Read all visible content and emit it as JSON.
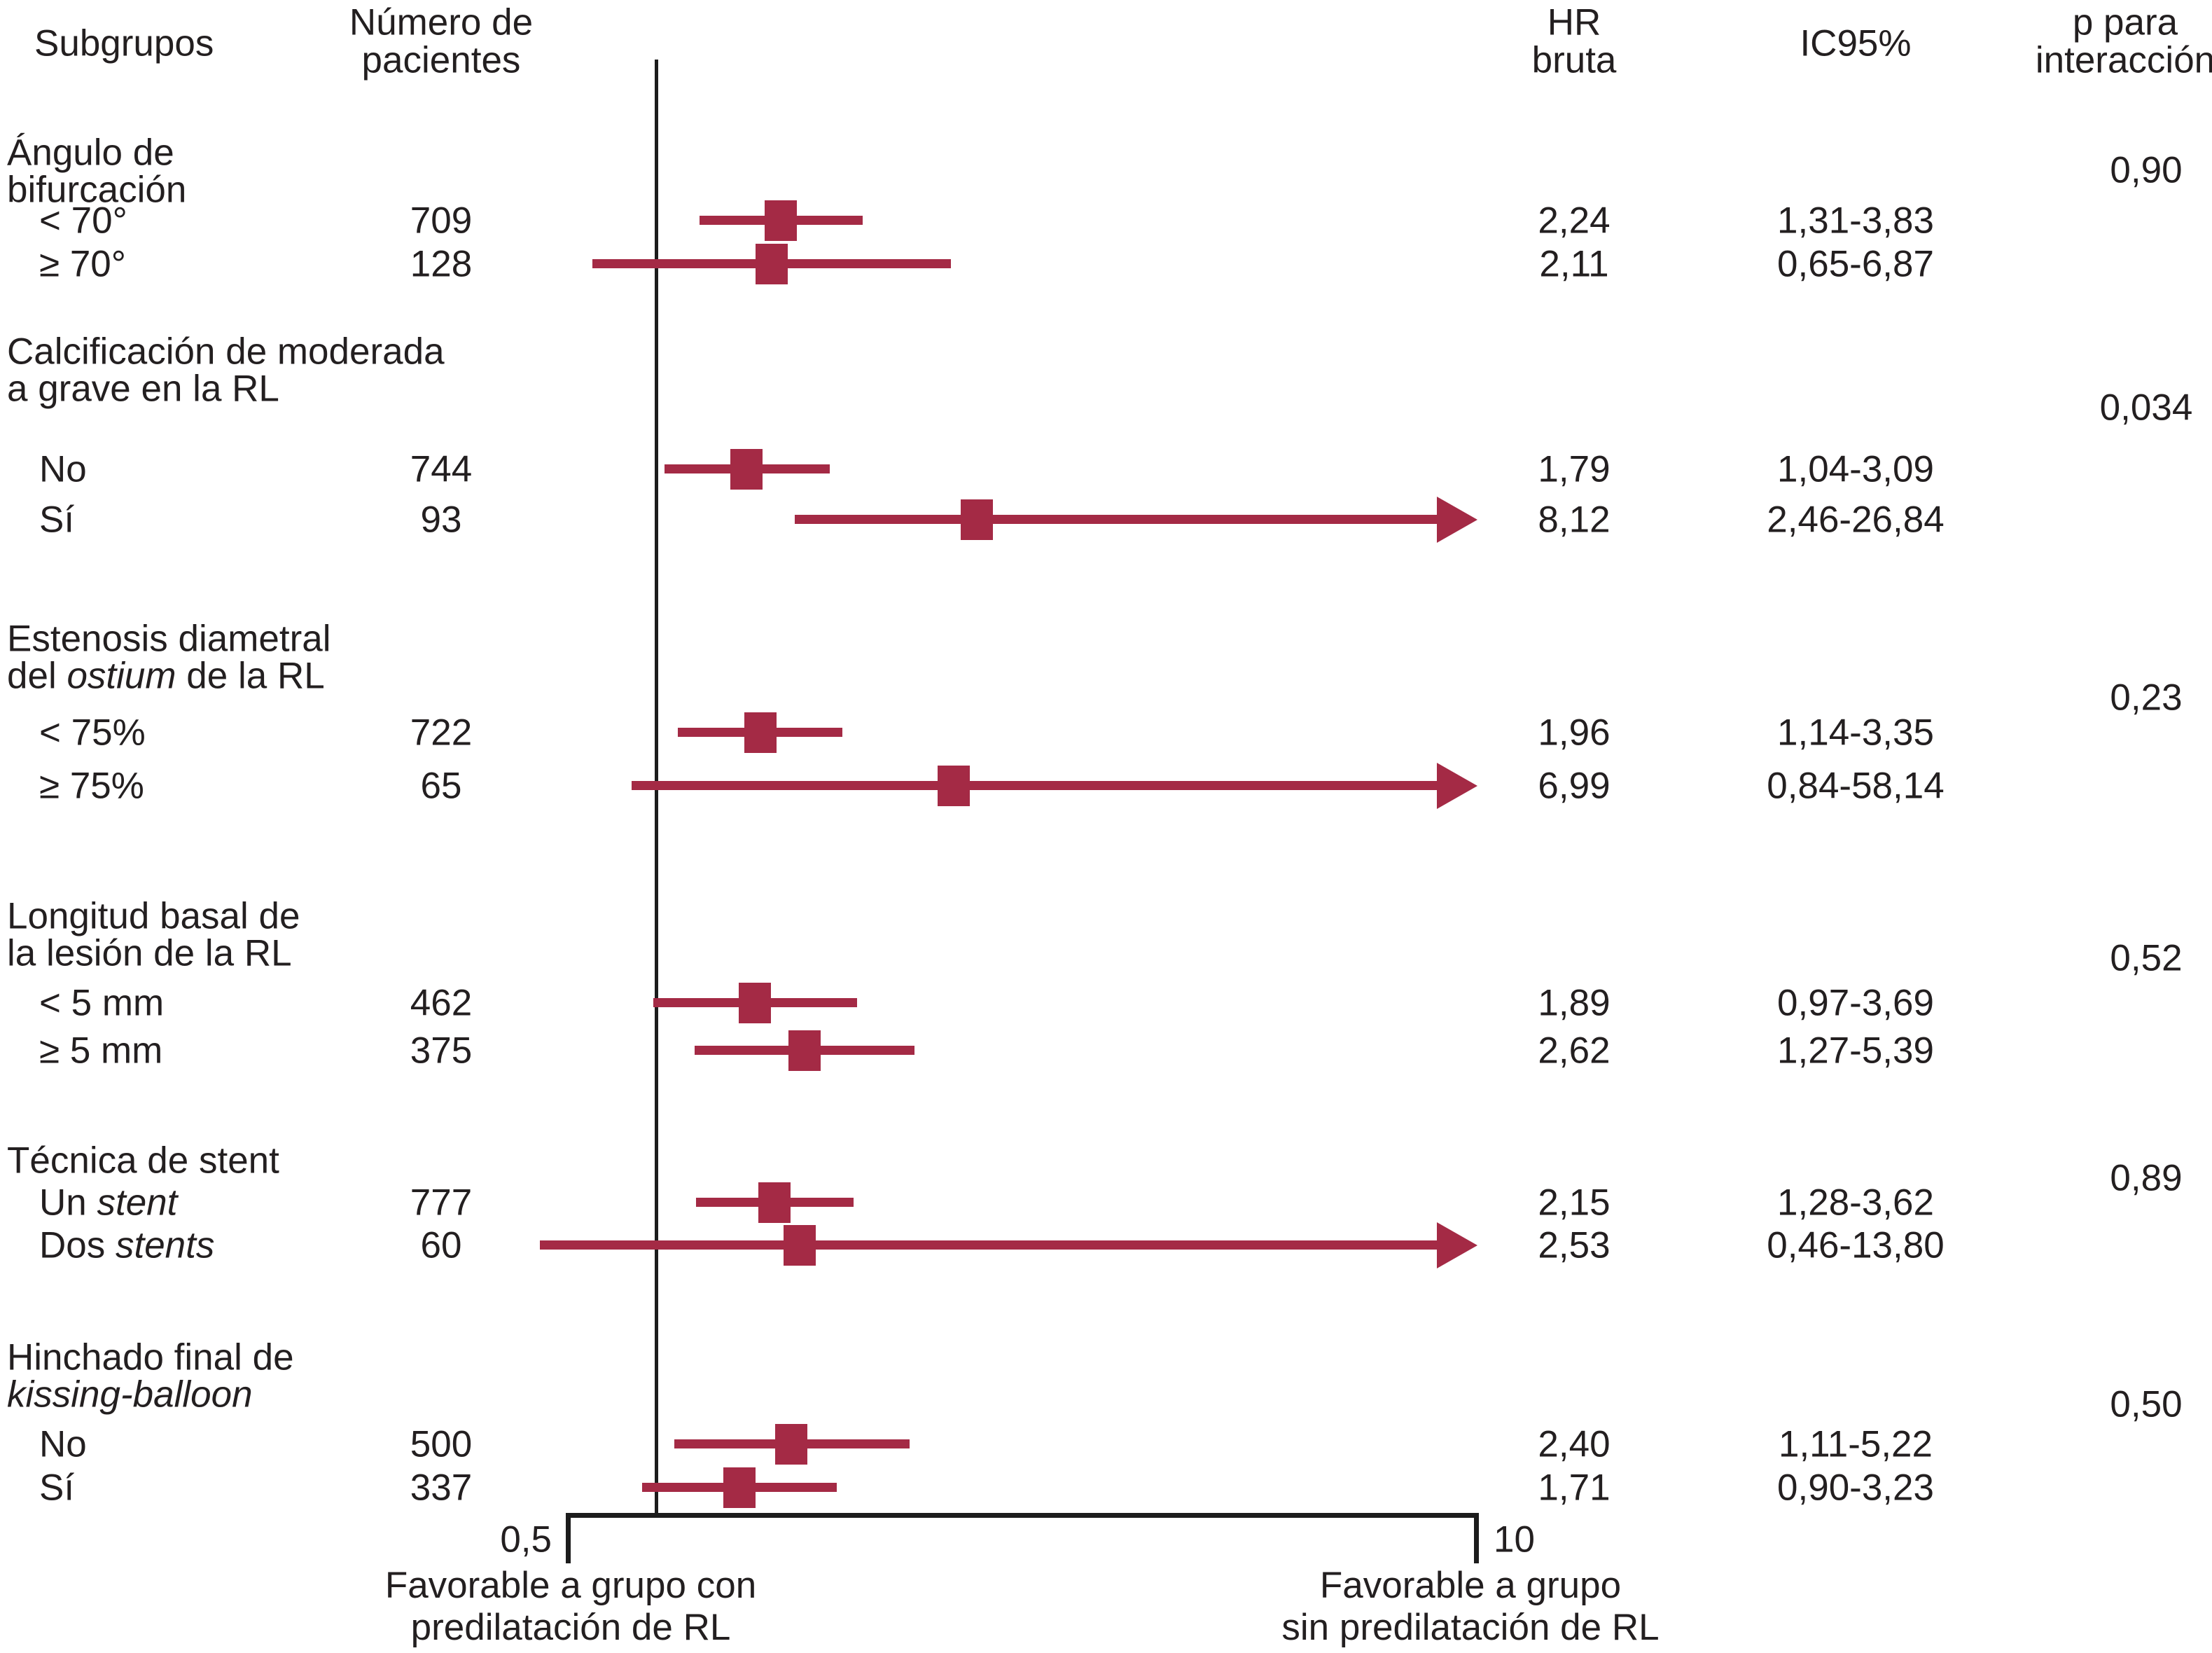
{
  "header": {
    "subgroups": "Subgrupos",
    "patients_lines": [
      "Número de",
      "pacientes"
    ],
    "hr_lines": [
      "HR",
      "bruta"
    ],
    "ci": "IC95%",
    "p_lines": [
      "p para",
      "interacción"
    ]
  },
  "axis": {
    "min_label": "0,5",
    "max_label": "10"
  },
  "footer": {
    "left_lines": [
      "Favorable a grupo con",
      "predilatación de RL"
    ],
    "right_lines": [
      "Favorable a grupo",
      "sin predilatación de RL"
    ]
  },
  "colors": {
    "marker": "#a42a45",
    "line": "#1c1c1c",
    "text": "#231f20"
  },
  "chart_data": {
    "type": "forest",
    "x_axis": {
      "scale": "log",
      "min": 0.5,
      "max": 10,
      "ref_line": 1,
      "tick_labels": [
        "0,5",
        "10"
      ]
    },
    "columns": [
      "Subgrupos",
      "Número de pacientes",
      "HR bruta",
      "IC95%",
      "p para interacción"
    ],
    "groups": [
      {
        "name_lines": [
          "Ángulo de",
          "bifurcación"
        ],
        "p_label": "0,90",
        "rows": [
          {
            "label": "< 70°",
            "n": "709",
            "hr_label": "2,24",
            "ci_label": "1,31-3,83",
            "hr": 2.24,
            "ci_low": 1.31,
            "ci_high": 3.83
          },
          {
            "label": "≥ 70°",
            "n": "128",
            "hr_label": "2,11",
            "ci_label": "0,65-6,87",
            "hr": 2.11,
            "ci_low": 0.65,
            "ci_high": 6.87
          }
        ]
      },
      {
        "name_lines": [
          "Calcificación de moderada",
          "a grave en la RL"
        ],
        "p_label": "0,034",
        "rows": [
          {
            "label": "No",
            "n": "744",
            "hr_label": "1,79",
            "ci_label": "1,04-3,09",
            "hr": 1.79,
            "ci_low": 1.04,
            "ci_high": 3.09
          },
          {
            "label": "Sí",
            "n": "93",
            "hr_label": "8,12",
            "ci_label": "2,46-26,84",
            "hr": 8.12,
            "ci_low": 2.46,
            "ci_high": 26.84
          }
        ]
      },
      {
        "name_lines": [
          "Estenosis diametral",
          "del *ostium* de la RL"
        ],
        "p_label": "0,23",
        "rows": [
          {
            "label": "< 75%",
            "n": "722",
            "hr_label": "1,96",
            "ci_label": "1,14-3,35",
            "hr": 1.96,
            "ci_low": 1.14,
            "ci_high": 3.35
          },
          {
            "label": "≥ 75%",
            "n": "65",
            "hr_label": "6,99",
            "ci_label": "0,84-58,14",
            "hr": 6.99,
            "ci_low": 0.84,
            "ci_high": 58.14
          }
        ]
      },
      {
        "name_lines": [
          "Longitud basal de",
          "la lesión de la RL"
        ],
        "p_label": "0,52",
        "rows": [
          {
            "label": "< 5 mm",
            "n": "462",
            "hr_label": "1,89",
            "ci_label": "0,97-3,69",
            "hr": 1.89,
            "ci_low": 0.97,
            "ci_high": 3.69
          },
          {
            "label": "≥ 5 mm",
            "n": "375",
            "hr_label": "2,62",
            "ci_label": "1,27-5,39",
            "hr": 2.62,
            "ci_low": 1.27,
            "ci_high": 5.39
          }
        ]
      },
      {
        "name_lines": [
          "Técnica de stent"
        ],
        "p_label": "0,89",
        "rows": [
          {
            "label": "Un *stent*",
            "n": "777",
            "hr_label": "2,15",
            "ci_label": "1,28-3,62",
            "hr": 2.15,
            "ci_low": 1.28,
            "ci_high": 3.62
          },
          {
            "label": "Dos *stents*",
            "n": "60",
            "hr_label": "2,53",
            "ci_label": "0,46-13,80",
            "hr": 2.53,
            "ci_low": 0.46,
            "ci_high": 13.8
          }
        ]
      },
      {
        "name_lines": [
          "Hinchado final de",
          "*kissing-balloon*"
        ],
        "p_label": "0,50",
        "rows": [
          {
            "label": "No",
            "n": "500",
            "hr_label": "2,40",
            "ci_label": "1,11-5,22",
            "hr": 2.4,
            "ci_low": 1.11,
            "ci_high": 5.22
          },
          {
            "label": "Sí",
            "n": "337",
            "hr_label": "1,71",
            "ci_label": "0,90-3,23",
            "hr": 1.71,
            "ci_low": 0.9,
            "ci_high": 3.23
          }
        ]
      }
    ]
  }
}
